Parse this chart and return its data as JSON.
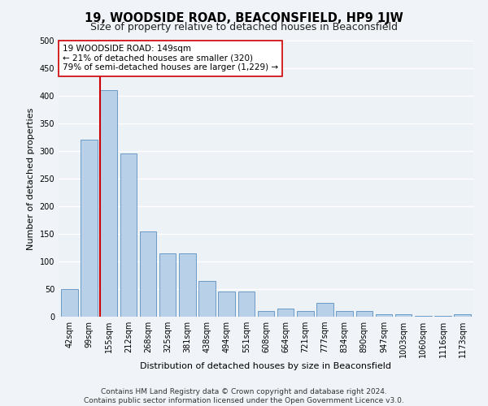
{
  "title": "19, WOODSIDE ROAD, BEACONSFIELD, HP9 1JW",
  "subtitle": "Size of property relative to detached houses in Beaconsfield",
  "xlabel": "Distribution of detached houses by size in Beaconsfield",
  "ylabel": "Number of detached properties",
  "categories": [
    "42sqm",
    "99sqm",
    "155sqm",
    "212sqm",
    "268sqm",
    "325sqm",
    "381sqm",
    "438sqm",
    "494sqm",
    "551sqm",
    "608sqm",
    "664sqm",
    "721sqm",
    "777sqm",
    "834sqm",
    "890sqm",
    "947sqm",
    "1003sqm",
    "1060sqm",
    "1116sqm",
    "1173sqm"
  ],
  "values": [
    50,
    320,
    410,
    295,
    155,
    115,
    115,
    65,
    45,
    45,
    10,
    15,
    10,
    25,
    10,
    10,
    5,
    5,
    2,
    2,
    5
  ],
  "bar_color": "#b8d0e8",
  "bar_edge_color": "#5a8fc0",
  "vline_index": 2,
  "vline_color": "#cc0000",
  "annotation_line1": "19 WOODSIDE ROAD: 149sqm",
  "annotation_line2": "← 21% of detached houses are smaller (320)",
  "annotation_line3": "79% of semi-detached houses are larger (1,229) →",
  "annotation_box_facecolor": "#ffffff",
  "annotation_box_edgecolor": "#cc0000",
  "ylim": [
    0,
    500
  ],
  "yticks": [
    0,
    50,
    100,
    150,
    200,
    250,
    300,
    350,
    400,
    450,
    500
  ],
  "bg_color": "#edf2f7",
  "grid_color": "#ffffff",
  "footer": "Contains HM Land Registry data © Crown copyright and database right 2024.\nContains public sector information licensed under the Open Government Licence v3.0.",
  "title_fontsize": 10.5,
  "subtitle_fontsize": 9,
  "axis_label_fontsize": 8,
  "tick_fontsize": 7,
  "annotation_fontsize": 7.5,
  "footer_fontsize": 6.5
}
